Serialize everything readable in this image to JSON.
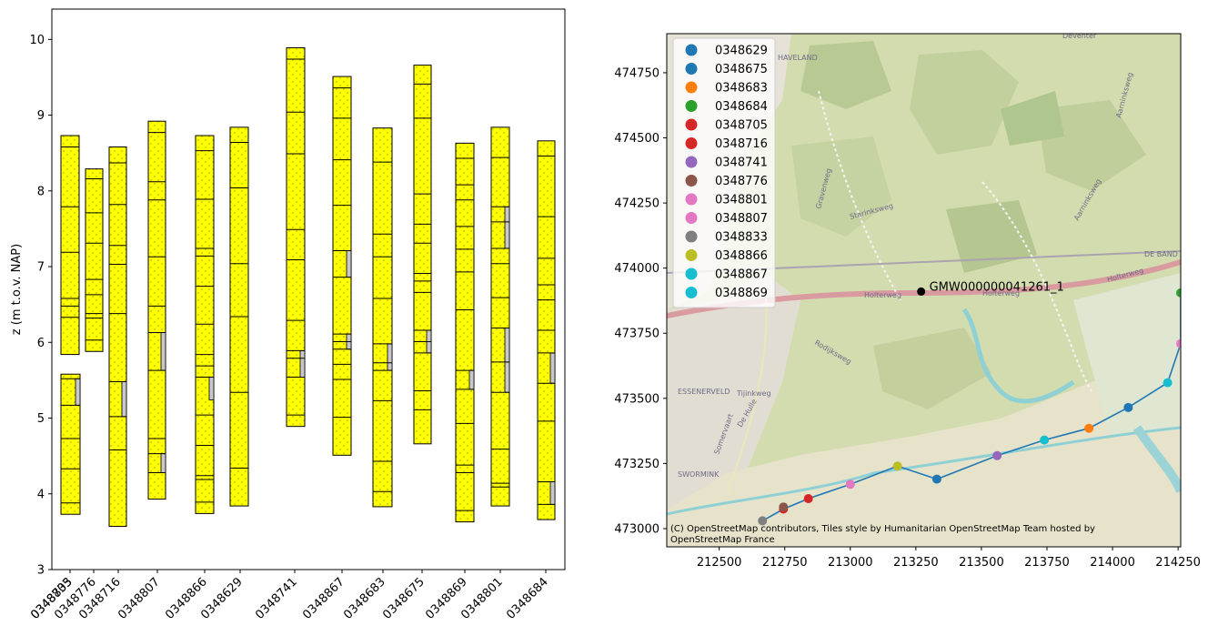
{
  "colors": {
    "sand": "#ffff00",
    "clay": "#c8c8c8",
    "line": "#1f77b4"
  },
  "chart_data": [
    {
      "type": "bar",
      "ylabel": "z (m t.o.v. NAP)",
      "ylim": [
        3,
        10.4
      ],
      "yticks": [
        3,
        4,
        5,
        6,
        7,
        8,
        9,
        10
      ],
      "xtick_labels": [
        "0348833",
        "0348705",
        "0348776",
        "0348716",
        "0348807",
        "0348866",
        "0348629",
        "0348741",
        "0348867",
        "0348683",
        "0348675",
        "0348869",
        "0348801",
        "0348684"
      ],
      "boreholes": [
        {
          "name": "0348833",
          "top": 5.58,
          "bottom": 3.73,
          "layers": [
            5.52,
            5.17,
            4.73,
            4.33,
            3.88
          ],
          "clay": [
            [
              5.52,
              5.17
            ]
          ]
        },
        {
          "name": "0348705",
          "top": 8.73,
          "bottom": 5.84,
          "layers": [
            8.58,
            7.79,
            7.19,
            6.58,
            6.48,
            6.33
          ],
          "clay": []
        },
        {
          "name": "0348776",
          "top": 8.29,
          "bottom": 5.88,
          "layers": [
            8.16,
            7.71,
            7.31,
            6.83,
            6.63,
            6.38,
            6.32,
            6.03
          ],
          "clay": []
        },
        {
          "name": "0348716",
          "top": 8.58,
          "bottom": 3.57,
          "layers": [
            8.37,
            7.82,
            7.28,
            7.03,
            6.38,
            5.48,
            5.02,
            4.58
          ],
          "clay": [
            [
              5.48,
              5.02
            ]
          ]
        },
        {
          "name": "0348807",
          "top": 8.92,
          "bottom": 3.93,
          "layers": [
            8.77,
            8.12,
            7.88,
            7.13,
            6.48,
            6.13,
            5.63,
            4.73,
            4.53,
            4.28
          ],
          "clay": [
            [
              6.13,
              5.63
            ],
            [
              4.53,
              4.28
            ]
          ]
        },
        {
          "name": "0348866",
          "top": 8.73,
          "bottom": 3.74,
          "layers": [
            8.53,
            7.89,
            7.24,
            7.14,
            6.74,
            6.24,
            5.84,
            5.69,
            5.54,
            5.04,
            4.64,
            4.24,
            4.19,
            3.89
          ],
          "clay": [
            [
              5.54,
              5.24
            ]
          ]
        },
        {
          "name": "0348629",
          "top": 8.84,
          "bottom": 3.84,
          "layers": [
            8.64,
            8.04,
            7.04,
            6.34,
            5.34,
            4.34
          ],
          "clay": []
        },
        {
          "name": "0348741",
          "top": 9.89,
          "bottom": 4.89,
          "layers": [
            9.74,
            9.04,
            8.49,
            7.49,
            7.09,
            6.29,
            5.89,
            5.79,
            5.54,
            5.04
          ],
          "clay": [
            [
              5.89,
              5.54
            ]
          ]
        },
        {
          "name": "0348867",
          "top": 9.51,
          "bottom": 4.51,
          "layers": [
            9.36,
            8.96,
            8.41,
            7.81,
            7.21,
            6.86,
            6.11,
            6.01,
            5.91,
            5.71,
            5.51,
            5.01
          ],
          "clay": [
            [
              7.21,
              6.86
            ],
            [
              6.11,
              5.91
            ]
          ]
        },
        {
          "name": "0348683",
          "top": 8.83,
          "bottom": 3.83,
          "layers": [
            8.38,
            7.43,
            7.13,
            6.58,
            5.98,
            5.73,
            5.63,
            5.23,
            4.43,
            4.03
          ],
          "clay": [
            [
              5.98,
              5.63
            ]
          ]
        },
        {
          "name": "0348675",
          "top": 9.66,
          "bottom": 4.66,
          "layers": [
            9.41,
            8.96,
            7.96,
            7.56,
            7.31,
            6.91,
            6.81,
            6.66,
            6.16,
            6.01,
            5.86,
            5.36,
            5.11
          ],
          "clay": [
            [
              6.16,
              5.86
            ]
          ]
        },
        {
          "name": "0348869",
          "top": 8.63,
          "bottom": 3.63,
          "layers": [
            8.43,
            8.08,
            7.88,
            7.53,
            7.23,
            6.93,
            6.43,
            5.63,
            5.38,
            4.93,
            4.38,
            4.28,
            3.78
          ],
          "clay": [
            [
              5.63,
              5.38
            ]
          ]
        },
        {
          "name": "0348801",
          "top": 8.84,
          "bottom": 3.84,
          "layers": [
            8.44,
            7.79,
            7.59,
            7.24,
            7.04,
            6.59,
            6.19,
            5.74,
            5.34,
            4.59,
            4.14,
            4.09
          ],
          "clay": [
            [
              7.79,
              7.24
            ],
            [
              6.19,
              5.74
            ],
            [
              5.74,
              5.34
            ]
          ]
        },
        {
          "name": "0348684",
          "top": 8.66,
          "bottom": 3.66,
          "layers": [
            8.46,
            7.66,
            7.11,
            6.76,
            6.56,
            6.16,
            5.86,
            5.46,
            4.96,
            4.16,
            3.86
          ],
          "clay": [
            [
              5.86,
              5.46
            ],
            [
              4.16,
              3.86
            ]
          ]
        }
      ]
    },
    {
      "type": "scatter",
      "xlim": [
        212300,
        214260
      ],
      "ylim": [
        472930,
        474900
      ],
      "xticks": [
        212500,
        212750,
        213000,
        213250,
        213500,
        213750,
        214000,
        214250
      ],
      "yticks": [
        473000,
        473250,
        473500,
        473750,
        474000,
        474250,
        474500,
        474750
      ],
      "legend_position": "top-left",
      "legend": [
        {
          "label": "0348629",
          "color": "#1f77b4"
        },
        {
          "label": "0348675",
          "color": "#1f77b4"
        },
        {
          "label": "0348683",
          "color": "#ff7f0e"
        },
        {
          "label": "0348684",
          "color": "#2ca02c"
        },
        {
          "label": "0348705",
          "color": "#d62728"
        },
        {
          "label": "0348716",
          "color": "#d62728"
        },
        {
          "label": "0348741",
          "color": "#9467bd"
        },
        {
          "label": "0348776",
          "color": "#8c564b"
        },
        {
          "label": "0348801",
          "color": "#e377c2"
        },
        {
          "label": "0348807",
          "color": "#e377c2"
        },
        {
          "label": "0348833",
          "color": "#7f7f7f"
        },
        {
          "label": "0348866",
          "color": "#bcbd22"
        },
        {
          "label": "0348867",
          "color": "#17becf"
        },
        {
          "label": "0348869",
          "color": "#17becf"
        }
      ],
      "points": [
        {
          "x": 212665,
          "y": 473030,
          "color": "#7f7f7f"
        },
        {
          "x": 212745,
          "y": 473075,
          "color": "#d62728"
        },
        {
          "x": 212745,
          "y": 473083,
          "color": "#8c564b"
        },
        {
          "x": 212840,
          "y": 473115,
          "color": "#d62728"
        },
        {
          "x": 213000,
          "y": 473170,
          "color": "#e377c2"
        },
        {
          "x": 213180,
          "y": 473240,
          "color": "#bcbd22"
        },
        {
          "x": 213330,
          "y": 473190,
          "color": "#1f77b4"
        },
        {
          "x": 213560,
          "y": 473280,
          "color": "#9467bd"
        },
        {
          "x": 213740,
          "y": 473340,
          "color": "#17becf"
        },
        {
          "x": 213910,
          "y": 473385,
          "color": "#ff7f0e"
        },
        {
          "x": 214060,
          "y": 473465,
          "color": "#1f77b4"
        },
        {
          "x": 214210,
          "y": 473560,
          "color": "#17becf"
        },
        {
          "x": 214260,
          "y": 473710,
          "color": "#e377c2"
        },
        {
          "x": 214260,
          "y": 473905,
          "color": "#2ca02c"
        }
      ],
      "path": [
        [
          212665,
          473030
        ],
        [
          212745,
          473075
        ],
        [
          212840,
          473115
        ],
        [
          213000,
          473170
        ],
        [
          213180,
          473240
        ],
        [
          213330,
          473190
        ],
        [
          213560,
          473280
        ],
        [
          213740,
          473340
        ],
        [
          213910,
          473385
        ],
        [
          214060,
          473465
        ],
        [
          214210,
          473560
        ],
        [
          214260,
          473710
        ],
        [
          214260,
          473905
        ]
      ],
      "marker": {
        "x": 213270,
        "y": 473910,
        "label": "GMW000000041261_1"
      },
      "attribution": [
        "(C) OpenStreetMap contributors, Tiles style by Humanitarian OpenStreetMap Team hosted by",
        "OpenStreetMap France"
      ],
      "map_labels": [
        "HAVELAND",
        "Deventer",
        "Gravenweg",
        "Starinksweg",
        "Aarninksweg",
        "DE BAND",
        "Holterweg",
        "Rodijksweg",
        "ESSENERVELD",
        "Tijinkweg",
        "De Hulle",
        "SWORMINK",
        "Aarninksweg"
      ]
    }
  ]
}
